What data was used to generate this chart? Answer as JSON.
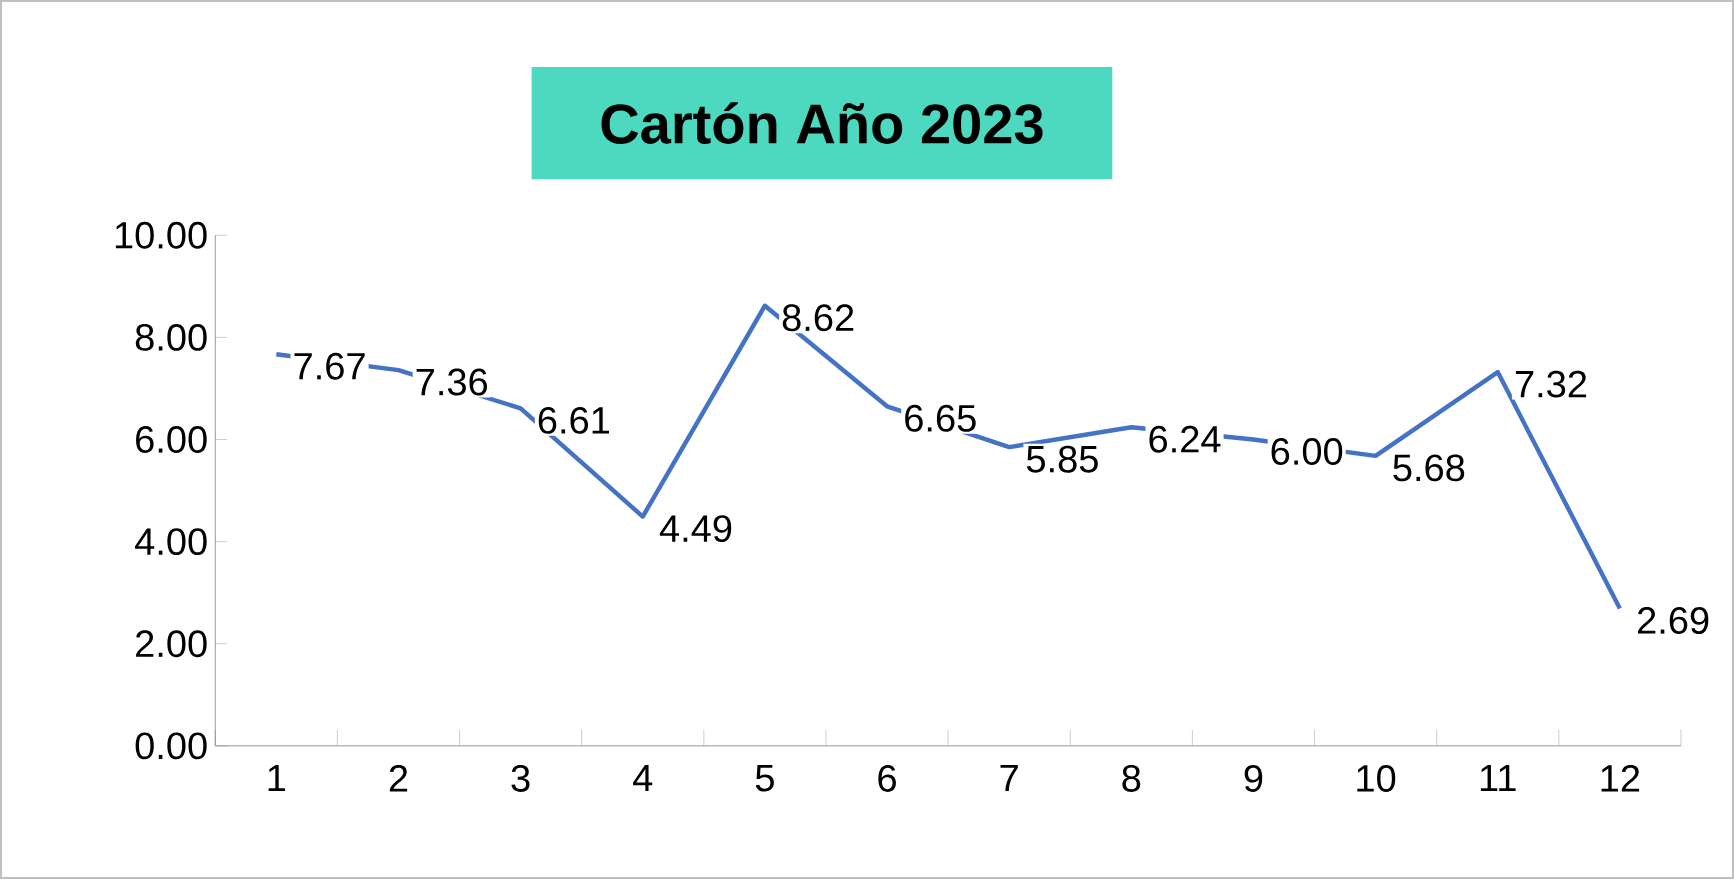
{
  "chart_data": {
    "type": "line",
    "title": "Cartón Año 2023",
    "categories": [
      "1",
      "2",
      "3",
      "4",
      "5",
      "6",
      "7",
      "8",
      "9",
      "10",
      "11",
      "12"
    ],
    "values": [
      7.67,
      7.36,
      6.61,
      4.49,
      8.62,
      6.65,
      5.85,
      6.24,
      6.0,
      5.68,
      7.32,
      2.69
    ],
    "value_labels": [
      "7.67",
      "7.36",
      "6.61",
      "4.49",
      "8.62",
      "6.65",
      "5.85",
      "6.24",
      "6.00",
      "5.68",
      "7.32",
      "2.69"
    ],
    "color": "#4472c4",
    "marker": "none",
    "line_style": "solid",
    "grid": false,
    "ylim": [
      0,
      10
    ],
    "yticks": [
      {
        "value": 0,
        "label": "0.00"
      },
      {
        "value": 2,
        "label": "2.00"
      },
      {
        "value": 4,
        "label": "4.00"
      },
      {
        "value": 6,
        "label": "6.00"
      },
      {
        "value": 8,
        "label": "8.00"
      },
      {
        "value": 10,
        "label": "10.00"
      }
    ]
  }
}
